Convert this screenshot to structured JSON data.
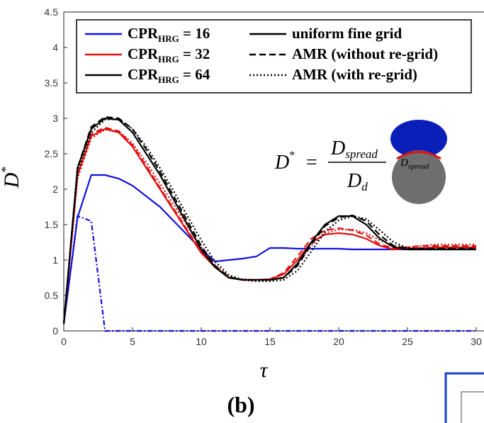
{
  "chart_data": {
    "type": "line",
    "xlabel": "τ",
    "ylabel": {
      "text": "D",
      "sup": "*"
    },
    "panel_label": "(b)",
    "xlim": [
      0,
      30
    ],
    "xticks": [
      0,
      5,
      10,
      15,
      20,
      25,
      30
    ],
    "ylim": [
      0,
      4.5
    ],
    "yticks": [
      0,
      0.5,
      1,
      1.5,
      2,
      2.5,
      3,
      3.5,
      4,
      4.5
    ],
    "legend_resolutions": [
      {
        "text": "CPR",
        "sub": "HRG",
        "suffix": " = 16",
        "color": "#1010e0"
      },
      {
        "text": "CPR",
        "sub": "HRG",
        "suffix": " = 32",
        "color": "#e01010"
      },
      {
        "text": "CPR",
        "sub": "HRG",
        "suffix": " = 64",
        "color": "#000000"
      }
    ],
    "legend_methods": [
      {
        "text": "uniform fine grid",
        "dash": "solid",
        "color": "#000000"
      },
      {
        "text": "AMR (without re-grid)",
        "dash": "dashed",
        "color": "#000000"
      },
      {
        "text": "AMR (with re-grid)",
        "dash": "dotted",
        "color": "#000000"
      }
    ],
    "formula": {
      "lhs": "D",
      "lhs_sup": "*",
      "eq": "=",
      "num": "D",
      "num_sub": "spread",
      "den": "D",
      "den_sub": "d"
    },
    "inset_label": {
      "text": "D",
      "sub": "spread"
    },
    "x": [
      0,
      1,
      2,
      3,
      4,
      5,
      6,
      7,
      8,
      9,
      10,
      11,
      12,
      13,
      14,
      15,
      16,
      17,
      18,
      19,
      20,
      21,
      22,
      23,
      24,
      25,
      26,
      27,
      28,
      29,
      30
    ],
    "series": [
      {
        "color": "#1010e0",
        "dash": "solid",
        "values": [
          0.1,
          1.6,
          2.2,
          2.2,
          2.15,
          2.05,
          1.9,
          1.75,
          1.55,
          1.35,
          1.15,
          0.98,
          1.0,
          1.02,
          1.05,
          1.17,
          1.17,
          1.16,
          1.16,
          1.16,
          1.16,
          1.15,
          1.15,
          1.15,
          1.15,
          1.15,
          1.15,
          1.15,
          1.15,
          1.15,
          1.15
        ]
      },
      {
        "color": "#1010e0",
        "dash": "dashdot",
        "values": [
          0.1,
          1.62,
          1.55,
          0,
          0,
          0,
          0,
          0,
          0,
          0,
          0,
          0,
          0,
          0,
          0,
          0,
          0,
          0,
          0,
          0,
          0,
          0,
          0,
          0,
          0,
          0,
          0,
          0,
          0,
          0,
          0
        ]
      },
      {
        "color": "#e01010",
        "dash": "solid",
        "values": [
          0.1,
          2.2,
          2.75,
          2.85,
          2.8,
          2.6,
          2.3,
          2.0,
          1.7,
          1.4,
          1.1,
          0.9,
          0.75,
          0.72,
          0.72,
          0.73,
          0.8,
          1.0,
          1.25,
          1.36,
          1.38,
          1.36,
          1.3,
          1.2,
          1.15,
          1.16,
          1.17,
          1.18,
          1.18,
          1.18,
          1.18
        ]
      },
      {
        "color": "#e01010",
        "dash": "dashed",
        "values": [
          0.1,
          2.2,
          2.78,
          2.87,
          2.82,
          2.62,
          2.33,
          2.02,
          1.72,
          1.42,
          1.12,
          0.9,
          0.75,
          0.72,
          0.72,
          0.73,
          0.82,
          1.05,
          1.3,
          1.42,
          1.45,
          1.42,
          1.35,
          1.22,
          1.17,
          1.18,
          1.2,
          1.2,
          1.2,
          1.2,
          1.2
        ]
      },
      {
        "color": "#e01010",
        "dash": "dotted",
        "values": [
          0.1,
          2.15,
          2.72,
          2.84,
          2.82,
          2.65,
          2.38,
          2.08,
          1.78,
          1.48,
          1.18,
          0.93,
          0.77,
          0.73,
          0.72,
          0.72,
          0.76,
          0.95,
          1.2,
          1.38,
          1.43,
          1.43,
          1.38,
          1.28,
          1.2,
          1.18,
          1.2,
          1.22,
          1.22,
          1.22,
          1.22
        ]
      },
      {
        "color": "#000000",
        "dash": "solid",
        "values": [
          0.1,
          2.3,
          2.85,
          3.0,
          2.98,
          2.8,
          2.5,
          2.2,
          1.85,
          1.5,
          1.15,
          0.9,
          0.75,
          0.72,
          0.72,
          0.72,
          0.75,
          0.95,
          1.25,
          1.5,
          1.62,
          1.62,
          1.5,
          1.3,
          1.18,
          1.15,
          1.15,
          1.15,
          1.15,
          1.15,
          1.15
        ]
      },
      {
        "color": "#000000",
        "dash": "dashed",
        "values": [
          0.1,
          2.3,
          2.88,
          3.02,
          3.0,
          2.85,
          2.56,
          2.25,
          1.9,
          1.55,
          1.2,
          0.92,
          0.76,
          0.72,
          0.72,
          0.72,
          0.75,
          0.92,
          1.22,
          1.48,
          1.6,
          1.63,
          1.55,
          1.35,
          1.2,
          1.16,
          1.16,
          1.16,
          1.16,
          1.16,
          1.16
        ]
      },
      {
        "color": "#000000",
        "dash": "dotted",
        "values": [
          0.1,
          2.25,
          2.8,
          2.98,
          2.99,
          2.85,
          2.6,
          2.3,
          1.97,
          1.62,
          1.28,
          0.98,
          0.79,
          0.72,
          0.7,
          0.7,
          0.72,
          0.85,
          1.12,
          1.4,
          1.56,
          1.62,
          1.58,
          1.42,
          1.25,
          1.17,
          1.16,
          1.16,
          1.16,
          1.16,
          1.16
        ]
      }
    ]
  }
}
